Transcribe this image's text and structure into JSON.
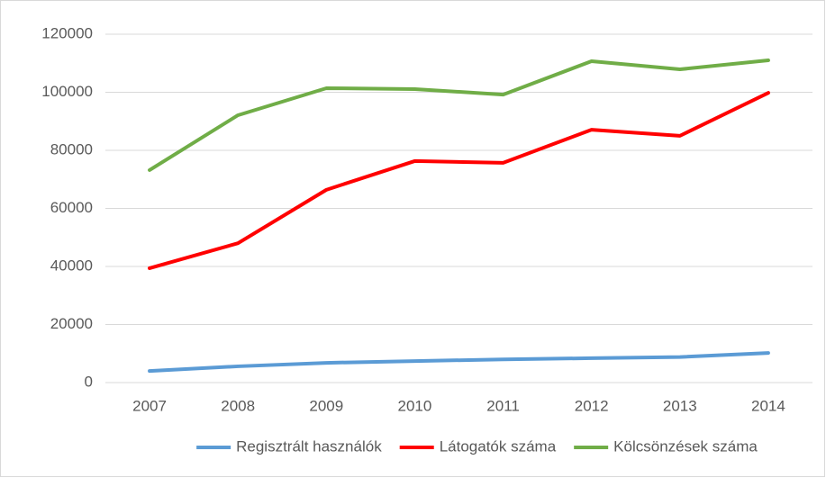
{
  "chart_data": {
    "type": "line",
    "categories": [
      "2007",
      "2008",
      "2009",
      "2010",
      "2011",
      "2012",
      "2013",
      "2014"
    ],
    "series": [
      {
        "name": "Regisztrált használók",
        "color": "#5b9bd5",
        "values": [
          4000,
          5600,
          6800,
          7400,
          8000,
          8400,
          8800,
          10200
        ]
      },
      {
        "name": "Látogatók száma",
        "color": "#ff0000",
        "values": [
          39400,
          48000,
          66400,
          76300,
          75700,
          87100,
          85000,
          99800
        ]
      },
      {
        "name": "Kölcsönzések száma",
        "color": "#70ad47",
        "values": [
          73200,
          92100,
          101400,
          101100,
          99200,
          110700,
          107900,
          111000
        ]
      }
    ],
    "ylim": [
      0,
      120000
    ],
    "yticks": [
      0,
      20000,
      40000,
      60000,
      80000,
      100000,
      120000
    ],
    "grid": true,
    "legend": "bottom"
  }
}
